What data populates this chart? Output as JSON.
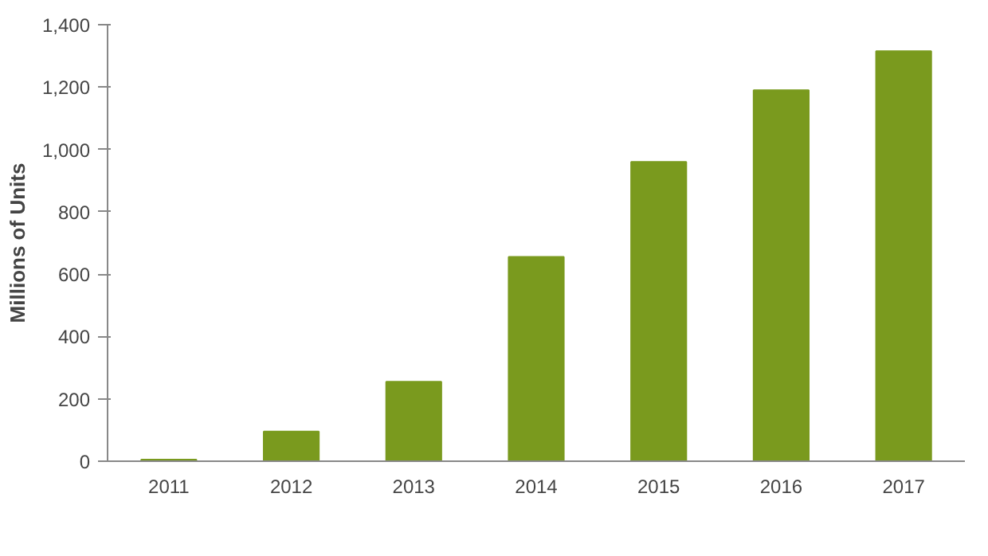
{
  "chart_data": {
    "type": "bar",
    "ylabel": "Millions of Units",
    "categories": [
      "2011",
      "2012",
      "2013",
      "2014",
      "2015",
      "2016",
      "2017"
    ],
    "values": [
      5,
      95,
      255,
      655,
      960,
      1190,
      1315
    ],
    "color": "#7a9a1e",
    "ylim": [
      0,
      1400
    ],
    "yticks": [
      0,
      {
        "value": 200,
        "label": "200"
      },
      {
        "value": 400,
        "label": "400"
      },
      {
        "value": 600,
        "label": "600"
      },
      {
        "value": 800,
        "label": "800"
      },
      {
        "value": 1000,
        "label": "1,000"
      },
      {
        "value": 1200,
        "label": "1,200"
      },
      {
        "value": 1400,
        "label": "1,400"
      }
    ],
    "grid": false
  }
}
